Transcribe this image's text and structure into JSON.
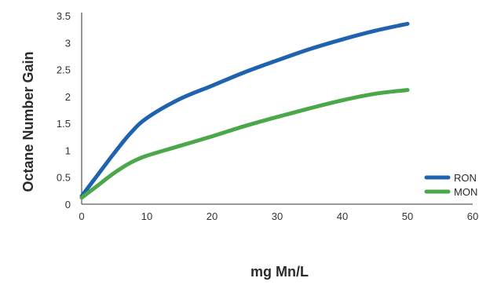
{
  "chart_data": {
    "type": "line",
    "title": "",
    "xlabel": "mg Mn/L",
    "ylabel": "Octane Number Gain",
    "xlim": [
      0,
      60
    ],
    "ylim": [
      0,
      3.5
    ],
    "x_ticks": [
      0,
      10,
      20,
      30,
      40,
      50,
      60
    ],
    "y_ticks": [
      0,
      0.5,
      1,
      1.5,
      2,
      2.5,
      3,
      3.5
    ],
    "y_tick_labels": [
      "0",
      "0.5",
      "1",
      "1.5",
      "2",
      "2.5",
      "3",
      "3.5"
    ],
    "grid": false,
    "legend_position": "right",
    "series": [
      {
        "name": "RON",
        "color": "#1f63b0",
        "x": [
          0,
          2.5,
          5,
          7.5,
          10,
          15,
          20,
          25,
          30,
          35,
          40,
          45,
          50
        ],
        "y": [
          0.15,
          0.55,
          0.95,
          1.32,
          1.6,
          1.95,
          2.2,
          2.45,
          2.67,
          2.88,
          3.06,
          3.22,
          3.35
        ]
      },
      {
        "name": "MON",
        "color": "#4aa84a",
        "x": [
          0,
          2.5,
          5,
          7.5,
          10,
          15,
          20,
          25,
          30,
          35,
          40,
          45,
          50
        ],
        "y": [
          0.12,
          0.35,
          0.58,
          0.77,
          0.9,
          1.08,
          1.26,
          1.45,
          1.62,
          1.78,
          1.93,
          2.05,
          2.12
        ]
      }
    ]
  }
}
